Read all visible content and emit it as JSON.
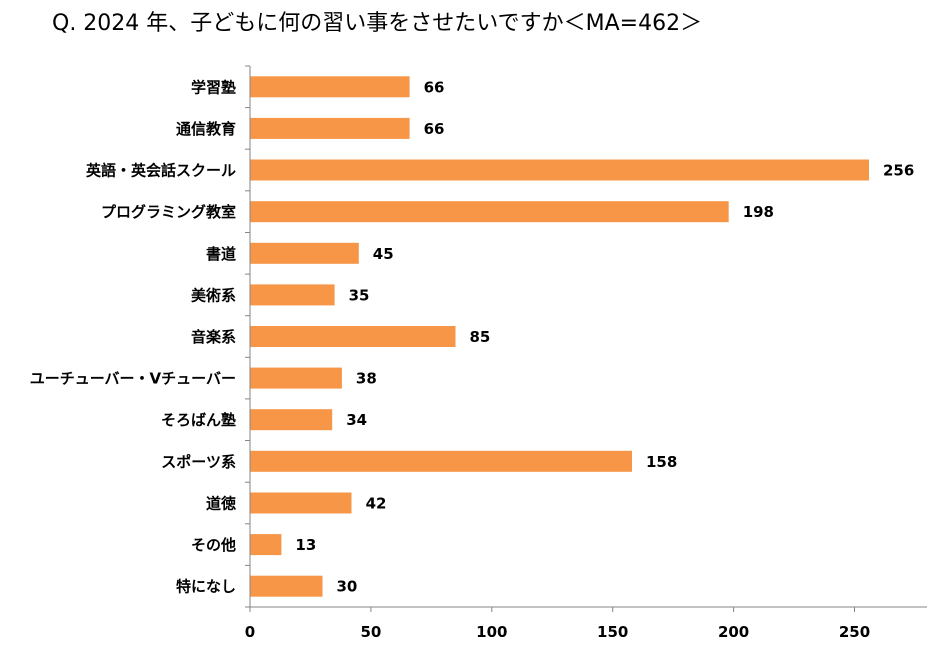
{
  "title": "Q. 2024 年、子どもに何の習い事をさせたいですか＜MA=462＞",
  "chart_data": {
    "type": "bar",
    "orientation": "horizontal",
    "title": "Q. 2024 年、子どもに何の習い事をさせたいですか＜MA=462＞",
    "categories": [
      "学習塾",
      "通信教育",
      "英語・英会話スクール",
      "プログラミング教室",
      "書道",
      "美術系",
      "音楽系",
      "ユーチューバー・Vチューバー",
      "そろばん塾",
      "スポーツ系",
      "道徳",
      "その他",
      "特になし"
    ],
    "values": [
      66,
      66,
      256,
      198,
      45,
      35,
      85,
      38,
      34,
      158,
      42,
      13,
      30
    ],
    "xlim": [
      0,
      280
    ],
    "xticks": [
      0,
      50,
      100,
      150,
      200,
      250
    ],
    "bar_color": "#F79646",
    "grid": false,
    "legend": "none"
  }
}
